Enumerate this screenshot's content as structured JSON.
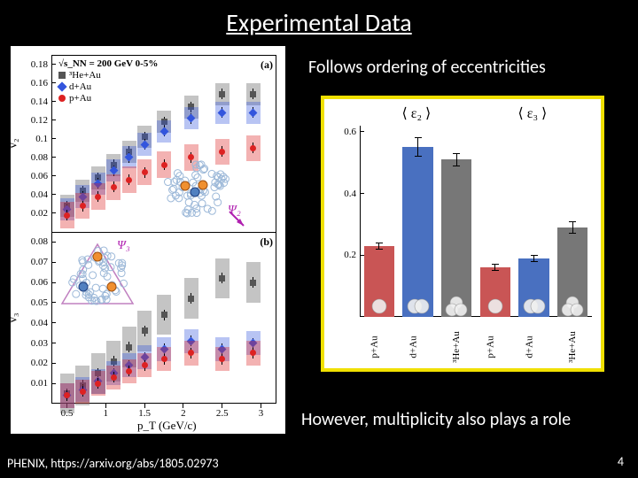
{
  "slide": {
    "title": "Experimental Data",
    "subtitle_top": "Follows ordering of eccentricities",
    "subtitle_bottom": "However, multiplicity also plays a role",
    "citation": "PHENIX, https://arxiv.org/abs/1805.02973",
    "page_number": "4"
  },
  "left_chart": {
    "energy_label": "√s_NN = 200 GeV 0-5%",
    "systems": [
      {
        "label": "³He+Au",
        "color": "#555555",
        "marker": "square"
      },
      {
        "label": "d+Au",
        "color": "#3355dd",
        "marker": "diamond"
      },
      {
        "label": "p+Au",
        "color": "#dd2222",
        "marker": "circle"
      }
    ],
    "panel_a": {
      "label": "(a)",
      "ylabel": "v₂",
      "psi": "Ψ₂",
      "yticks": [
        "0.02",
        "0.04",
        "0.06",
        "0.08",
        "0.1",
        "0.12",
        "0.14",
        "0.16",
        "0.18"
      ],
      "ylim": [
        0,
        0.19
      ],
      "data": {
        "he3au": [
          {
            "x": 0.5,
            "y": 0.028
          },
          {
            "x": 0.7,
            "y": 0.044
          },
          {
            "x": 0.9,
            "y": 0.058
          },
          {
            "x": 1.1,
            "y": 0.072
          },
          {
            "x": 1.3,
            "y": 0.086
          },
          {
            "x": 1.5,
            "y": 0.102
          },
          {
            "x": 1.75,
            "y": 0.118
          },
          {
            "x": 2.1,
            "y": 0.134
          },
          {
            "x": 2.5,
            "y": 0.148
          },
          {
            "x": 2.9,
            "y": 0.148
          }
        ],
        "dau": [
          {
            "x": 0.5,
            "y": 0.024
          },
          {
            "x": 0.7,
            "y": 0.038
          },
          {
            "x": 0.9,
            "y": 0.052
          },
          {
            "x": 1.1,
            "y": 0.066
          },
          {
            "x": 1.3,
            "y": 0.08
          },
          {
            "x": 1.5,
            "y": 0.094
          },
          {
            "x": 1.75,
            "y": 0.108
          },
          {
            "x": 2.1,
            "y": 0.122
          },
          {
            "x": 2.5,
            "y": 0.128
          },
          {
            "x": 2.9,
            "y": 0.128
          }
        ],
        "pau": [
          {
            "x": 0.5,
            "y": 0.018
          },
          {
            "x": 0.7,
            "y": 0.028
          },
          {
            "x": 0.9,
            "y": 0.038
          },
          {
            "x": 1.1,
            "y": 0.048
          },
          {
            "x": 1.3,
            "y": 0.056
          },
          {
            "x": 1.5,
            "y": 0.064
          },
          {
            "x": 1.75,
            "y": 0.072
          },
          {
            "x": 2.1,
            "y": 0.08
          },
          {
            "x": 2.5,
            "y": 0.086
          },
          {
            "x": 2.9,
            "y": 0.09
          }
        ]
      },
      "boxes": {
        "he3au_w": 0.05,
        "dau_w": 0.05,
        "pau_w": 0.05,
        "he3au_h": 0.012,
        "dau_h": 0.012,
        "pau_h": 0.014
      }
    },
    "panel_b": {
      "label": "(b)",
      "ylabel": "v₃",
      "xlabel": "p_T (GeV/c)",
      "psi": "Ψ₃",
      "xticks": [
        "0.5",
        "1",
        "1.5",
        "2",
        "2.5",
        "3"
      ],
      "yticks": [
        "0.01",
        "0.02",
        "0.03",
        "0.04",
        "0.05",
        "0.06",
        "0.07",
        "0.08"
      ],
      "xlim": [
        0.3,
        3.2
      ],
      "ylim": [
        0,
        0.085
      ],
      "data": {
        "he3au": [
          {
            "x": 0.5,
            "y": 0.005
          },
          {
            "x": 0.7,
            "y": 0.009
          },
          {
            "x": 0.9,
            "y": 0.015
          },
          {
            "x": 1.1,
            "y": 0.021
          },
          {
            "x": 1.3,
            "y": 0.028
          },
          {
            "x": 1.5,
            "y": 0.036
          },
          {
            "x": 1.75,
            "y": 0.044
          },
          {
            "x": 2.1,
            "y": 0.052
          },
          {
            "x": 2.5,
            "y": 0.062
          },
          {
            "x": 2.9,
            "y": 0.06
          }
        ],
        "dau": [
          {
            "x": 0.5,
            "y": 0.004
          },
          {
            "x": 0.7,
            "y": 0.007
          },
          {
            "x": 0.9,
            "y": 0.011
          },
          {
            "x": 1.1,
            "y": 0.015
          },
          {
            "x": 1.3,
            "y": 0.019
          },
          {
            "x": 1.5,
            "y": 0.023
          },
          {
            "x": 1.75,
            "y": 0.027
          },
          {
            "x": 2.1,
            "y": 0.031
          },
          {
            "x": 2.5,
            "y": 0.027
          },
          {
            "x": 2.9,
            "y": 0.03
          }
        ],
        "pau": [
          {
            "x": 0.5,
            "y": 0.004
          },
          {
            "x": 0.7,
            "y": 0.006
          },
          {
            "x": 0.9,
            "y": 0.01
          },
          {
            "x": 1.1,
            "y": 0.013
          },
          {
            "x": 1.3,
            "y": 0.016
          },
          {
            "x": 1.5,
            "y": 0.019
          },
          {
            "x": 1.75,
            "y": 0.022
          },
          {
            "x": 2.1,
            "y": 0.025
          },
          {
            "x": 2.5,
            "y": 0.022
          },
          {
            "x": 2.9,
            "y": 0.025
          }
        ]
      },
      "boxes": {
        "he3au_h": 0.01,
        "dau_h": 0.006,
        "pau_h": 0.006
      }
    }
  },
  "right_chart": {
    "section_labels": [
      "⟨ ε₂ ⟩",
      "⟨ ε₃ ⟩"
    ],
    "ylabel": "",
    "ylim": [
      0,
      0.62
    ],
    "yticks": [
      "0.2",
      "0.4",
      "0.6"
    ],
    "categories": [
      "p+Au",
      "d+Au",
      "³He+Au",
      "p+Au",
      "d+Au",
      "³He+Au"
    ],
    "bars": [
      {
        "x": 0,
        "y": 0.23,
        "err": 0.01,
        "color": "#c95555"
      },
      {
        "x": 1,
        "y": 0.55,
        "err": 0.03,
        "color": "#4970c0"
      },
      {
        "x": 2,
        "y": 0.51,
        "err": 0.02,
        "color": "#777777"
      },
      {
        "x": 3,
        "y": 0.16,
        "err": 0.01,
        "color": "#c95555"
      },
      {
        "x": 4,
        "y": 0.19,
        "err": 0.01,
        "color": "#4970c0"
      },
      {
        "x": 5,
        "y": 0.29,
        "err": 0.02,
        "color": "#777777"
      }
    ],
    "shapes": [
      "1",
      "2",
      "3",
      "1",
      "2",
      "3"
    ]
  }
}
